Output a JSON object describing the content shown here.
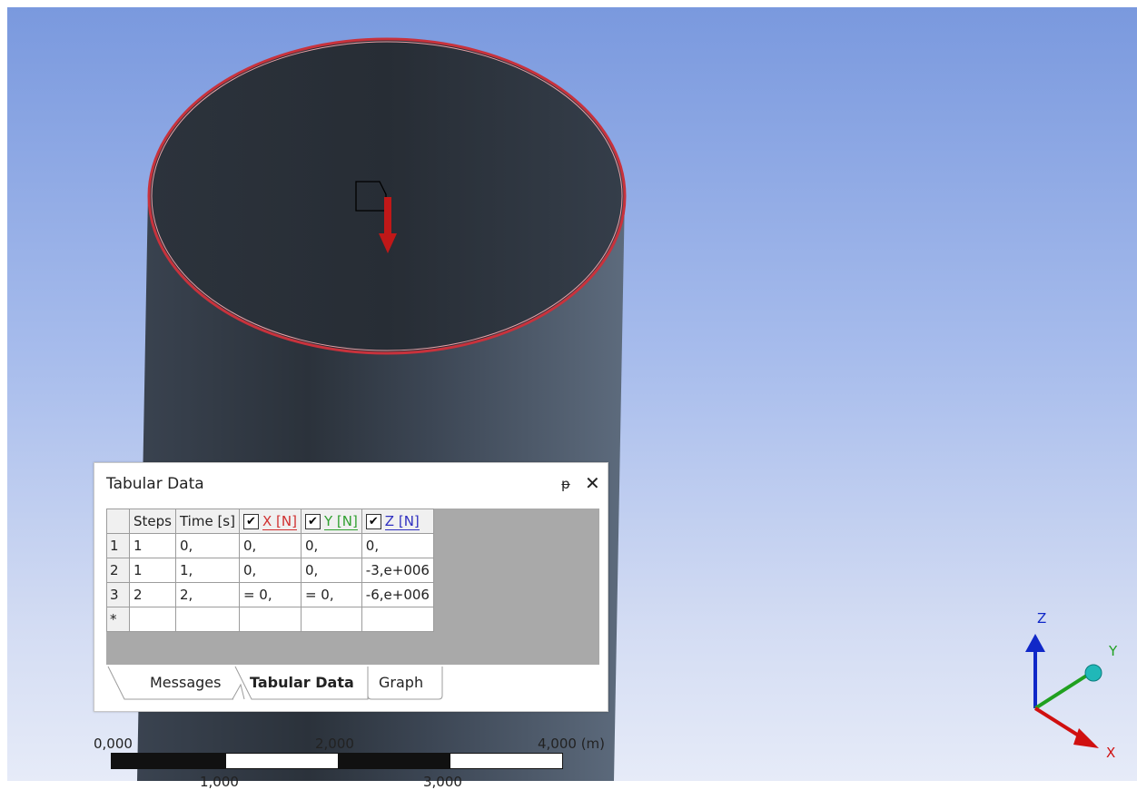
{
  "panel": {
    "title": "Tabular Data",
    "pin_glyph": "ᵽ",
    "close_glyph": "✕",
    "columns": [
      "Steps",
      "Time [s]",
      "X [N]",
      "Y [N]",
      "Z [N]"
    ],
    "rows": [
      {
        "num": "1",
        "steps": "1",
        "time": "0,",
        "x": "0,",
        "y": "0,",
        "z": "0,"
      },
      {
        "num": "2",
        "steps": "1",
        "time": "1,",
        "x": "0,",
        "y": "0,",
        "z": "-3,e+006"
      },
      {
        "num": "3",
        "steps": "2",
        "time": "2,",
        "x": "= 0,",
        "y": "= 0,",
        "z": "-6,e+006"
      },
      {
        "num": "*",
        "steps": "",
        "time": "",
        "x": "",
        "y": "",
        "z": ""
      }
    ],
    "tabs": [
      "Messages",
      "Tabular Data",
      "Graph"
    ],
    "active_tab": "Tabular Data"
  },
  "scale": {
    "label_0": "0,000",
    "label_mid": "2,000",
    "label_end": "4,000 (m)",
    "label_low_1": "1,000",
    "label_low_2": "3,000"
  },
  "triad": {
    "z": "Z",
    "y": "Y",
    "x": "X"
  },
  "colors": {
    "edge_highlight": "#c8323c",
    "force_arrow": "#c01818",
    "axis_x": "#d01010",
    "axis_y": "#20a020",
    "axis_z": "#1028c8"
  }
}
